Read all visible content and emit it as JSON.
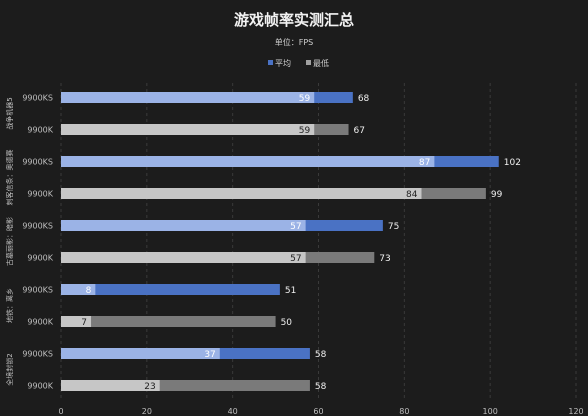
{
  "chart_data": {
    "type": "bar",
    "orientation": "horizontal",
    "stacked_overlay": true,
    "title": "游戏帧率实测汇总",
    "subtitle": "单位：FPS",
    "legend": [
      {
        "name": "平均",
        "color": "#4a72c4"
      },
      {
        "name": "最低",
        "color": "#a0a0a0"
      }
    ],
    "xlim": [
      0,
      120
    ],
    "xticks": [
      0,
      20,
      40,
      60,
      80,
      100,
      120
    ],
    "groups": [
      {
        "label": "战争机器5",
        "rows": [
          {
            "cpu": "9900KS",
            "min": 59,
            "avg": 68
          },
          {
            "cpu": "9900K",
            "min": 59,
            "avg": 67
          }
        ]
      },
      {
        "label": "刺客信条：奥德赛",
        "rows": [
          {
            "cpu": "9900KS",
            "min": 87,
            "avg": 102
          },
          {
            "cpu": "9900K",
            "min": 84,
            "avg": 99
          }
        ]
      },
      {
        "label": "古墓丽影：暗影",
        "rows": [
          {
            "cpu": "9900KS",
            "min": 57,
            "avg": 75
          },
          {
            "cpu": "9900K",
            "min": 57,
            "avg": 73
          }
        ]
      },
      {
        "label": "地铁：离乡",
        "rows": [
          {
            "cpu": "9900KS",
            "min": 8,
            "avg": 51
          },
          {
            "cpu": "9900K",
            "min": 7,
            "avg": 50
          }
        ]
      },
      {
        "label": "全境封锁2",
        "rows": [
          {
            "cpu": "9900KS",
            "min": 37,
            "avg": 58
          },
          {
            "cpu": "9900K",
            "min": 23,
            "avg": 58
          }
        ]
      }
    ],
    "colors": {
      "ks_avg": "#4a72c4",
      "ks_min": "#9bb3e6",
      "k_avg": "#7a7a7a",
      "k_min": "#c6c6c6",
      "grid": "#3a3a3a"
    }
  }
}
